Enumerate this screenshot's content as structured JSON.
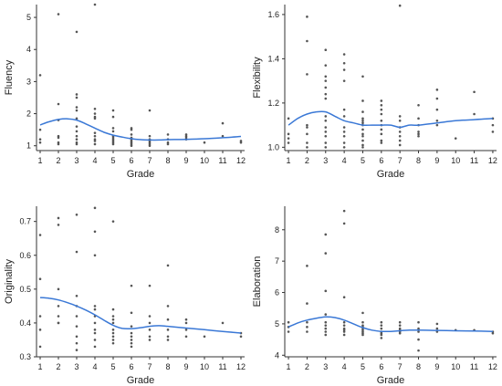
{
  "colors": {
    "trend": "#3a78d6",
    "points": "#555555",
    "axis": "#333333"
  },
  "chart_data": [
    {
      "type": "scatter",
      "title": "",
      "xlabel": "Grade",
      "ylabel": "Fluency",
      "xlim": [
        0.8,
        12.2
      ],
      "ylim": [
        0.85,
        5.4
      ],
      "xticks": [
        1,
        2,
        3,
        4,
        5,
        6,
        7,
        8,
        9,
        10,
        11,
        12
      ],
      "yticks": [
        1,
        2,
        3,
        4,
        5
      ],
      "grid": false,
      "points": [
        [
          1,
          3.2
        ],
        [
          1,
          1.5
        ],
        [
          1,
          1.2
        ],
        [
          1,
          1.1
        ],
        [
          2,
          5.1
        ],
        [
          2,
          2.3
        ],
        [
          2,
          1.8
        ],
        [
          2,
          1.3
        ],
        [
          2,
          1.25
        ],
        [
          2,
          1.1
        ],
        [
          2,
          1.05
        ],
        [
          3,
          4.55
        ],
        [
          3,
          2.6
        ],
        [
          3,
          2.5
        ],
        [
          3,
          2.2
        ],
        [
          3,
          2.1
        ],
        [
          3,
          1.85
        ],
        [
          3,
          1.6
        ],
        [
          3,
          1.45
        ],
        [
          3,
          1.3
        ],
        [
          3,
          1.2
        ],
        [
          3,
          1.1
        ],
        [
          3,
          1.05
        ],
        [
          4,
          5.4
        ],
        [
          4,
          2.15
        ],
        [
          4,
          2.0
        ],
        [
          4,
          1.9
        ],
        [
          4,
          1.85
        ],
        [
          4,
          1.4
        ],
        [
          4,
          1.3
        ],
        [
          4,
          1.2
        ],
        [
          4,
          1.15
        ],
        [
          4,
          1.05
        ],
        [
          5,
          2.1
        ],
        [
          5,
          1.9
        ],
        [
          5,
          1.55
        ],
        [
          5,
          1.45
        ],
        [
          5,
          1.3
        ],
        [
          5,
          1.25
        ],
        [
          5,
          1.2
        ],
        [
          5,
          1.15
        ],
        [
          5,
          1.1
        ],
        [
          5,
          1.05
        ],
        [
          6,
          1.55
        ],
        [
          6,
          1.5
        ],
        [
          6,
          1.35
        ],
        [
          6,
          1.25
        ],
        [
          6,
          1.2
        ],
        [
          6,
          1.15
        ],
        [
          6,
          1.1
        ],
        [
          6,
          1.05
        ],
        [
          6,
          1.0
        ],
        [
          7,
          2.1
        ],
        [
          7,
          1.3
        ],
        [
          7,
          1.2
        ],
        [
          7,
          1.15
        ],
        [
          7,
          1.1
        ],
        [
          7,
          1.05
        ],
        [
          7,
          1.0
        ],
        [
          8,
          1.35
        ],
        [
          8,
          1.2
        ],
        [
          8,
          1.1
        ],
        [
          8,
          1.05
        ],
        [
          9,
          1.35
        ],
        [
          9,
          1.3
        ],
        [
          9,
          1.25
        ],
        [
          9,
          1.2
        ],
        [
          10,
          1.1
        ],
        [
          11,
          1.7
        ],
        [
          11,
          1.3
        ],
        [
          12,
          1.15
        ],
        [
          12,
          1.1
        ]
      ],
      "trend": {
        "x": [
          1,
          1.5,
          2,
          2.5,
          3,
          3.5,
          4,
          4.5,
          5,
          5.5,
          6,
          6.5,
          7,
          7.5,
          8,
          9,
          10,
          11,
          12
        ],
        "y": [
          1.65,
          1.75,
          1.82,
          1.84,
          1.8,
          1.68,
          1.55,
          1.42,
          1.33,
          1.27,
          1.22,
          1.19,
          1.18,
          1.18,
          1.19,
          1.2,
          1.22,
          1.25,
          1.29
        ]
      }
    },
    {
      "type": "scatter",
      "title": "",
      "xlabel": "Grade",
      "ylabel": "Flexibility",
      "xlim": [
        0.8,
        12.2
      ],
      "ylim": [
        0.985,
        1.645
      ],
      "xticks": [
        1,
        2,
        3,
        4,
        5,
        6,
        7,
        8,
        9,
        10,
        11,
        12
      ],
      "yticks": [
        1.0,
        1.2,
        1.4,
        1.6
      ],
      "ytick_labels": [
        "1.0",
        "1.2",
        "1.4",
        "1.6"
      ],
      "grid": false,
      "points": [
        [
          1,
          1.13
        ],
        [
          1,
          1.06
        ],
        [
          1,
          1.04
        ],
        [
          1,
          1.02
        ],
        [
          2,
          1.59
        ],
        [
          2,
          1.48
        ],
        [
          2,
          1.33
        ],
        [
          2,
          1.1
        ],
        [
          2,
          1.09
        ],
        [
          2,
          1.06
        ],
        [
          2,
          1.02
        ],
        [
          2,
          1.0
        ],
        [
          3,
          1.44
        ],
        [
          3,
          1.37
        ],
        [
          3,
          1.32
        ],
        [
          3,
          1.3
        ],
        [
          3,
          1.27
        ],
        [
          3,
          1.24
        ],
        [
          3,
          1.22
        ],
        [
          3,
          1.14
        ],
        [
          3,
          1.12
        ],
        [
          3,
          1.09
        ],
        [
          3,
          1.07
        ],
        [
          3,
          1.05
        ],
        [
          3,
          1.02
        ],
        [
          3,
          1.0
        ],
        [
          4,
          1.42
        ],
        [
          4,
          1.38
        ],
        [
          4,
          1.35
        ],
        [
          4,
          1.3
        ],
        [
          4,
          1.17
        ],
        [
          4,
          1.14
        ],
        [
          4,
          1.09
        ],
        [
          4,
          1.07
        ],
        [
          4,
          1.05
        ],
        [
          4,
          1.02
        ],
        [
          4,
          1.0
        ],
        [
          5,
          1.32
        ],
        [
          5,
          1.21
        ],
        [
          5,
          1.16
        ],
        [
          5,
          1.13
        ],
        [
          5,
          1.12
        ],
        [
          5,
          1.11
        ],
        [
          5,
          1.1
        ],
        [
          5,
          1.08
        ],
        [
          5,
          1.06
        ],
        [
          5,
          1.05
        ],
        [
          5,
          1.03
        ],
        [
          5,
          1.01
        ],
        [
          5,
          1.0
        ],
        [
          6,
          1.21
        ],
        [
          6,
          1.19
        ],
        [
          6,
          1.17
        ],
        [
          6,
          1.15
        ],
        [
          6,
          1.12
        ],
        [
          6,
          1.1
        ],
        [
          6,
          1.08
        ],
        [
          6,
          1.06
        ],
        [
          6,
          1.03
        ],
        [
          6,
          1.02
        ],
        [
          7,
          1.64
        ],
        [
          7,
          1.14
        ],
        [
          7,
          1.12
        ],
        [
          7,
          1.09
        ],
        [
          7,
          1.07
        ],
        [
          7,
          1.05
        ],
        [
          7,
          1.03
        ],
        [
          7,
          1.01
        ],
        [
          8,
          1.19
        ],
        [
          8,
          1.13
        ],
        [
          8,
          1.1
        ],
        [
          8,
          1.07
        ],
        [
          8,
          1.06
        ],
        [
          8,
          1.05
        ],
        [
          9,
          1.26
        ],
        [
          9,
          1.22
        ],
        [
          9,
          1.17
        ],
        [
          9,
          1.12
        ],
        [
          9,
          1.1
        ],
        [
          10,
          1.04
        ],
        [
          11,
          1.25
        ],
        [
          11,
          1.15
        ],
        [
          12,
          1.13
        ],
        [
          12,
          1.1
        ],
        [
          12,
          1.07
        ]
      ],
      "trend": {
        "x": [
          1,
          1.5,
          2,
          2.5,
          3,
          3.5,
          4,
          4.5,
          5,
          5.5,
          6,
          6.5,
          7,
          7.5,
          8,
          9,
          10,
          11,
          12
        ],
        "y": [
          1.1,
          1.13,
          1.15,
          1.16,
          1.16,
          1.14,
          1.12,
          1.11,
          1.1,
          1.1,
          1.1,
          1.1,
          1.09,
          1.1,
          1.1,
          1.11,
          1.12,
          1.125,
          1.13
        ]
      }
    },
    {
      "type": "scatter",
      "title": "",
      "xlabel": "Grade",
      "ylabel": "Originality",
      "xlim": [
        0.8,
        12.2
      ],
      "ylim": [
        0.3,
        0.745
      ],
      "xticks": [
        1,
        2,
        3,
        4,
        5,
        6,
        7,
        8,
        9,
        10,
        11,
        12
      ],
      "yticks": [
        0.3,
        0.4,
        0.5,
        0.6,
        0.7
      ],
      "ytick_labels": [
        "0.3",
        "0.4",
        "0.5",
        "0.6",
        "0.7"
      ],
      "grid": false,
      "points": [
        [
          1,
          0.66
        ],
        [
          1,
          0.53
        ],
        [
          1,
          0.42
        ],
        [
          1,
          0.38
        ],
        [
          1,
          0.33
        ],
        [
          2,
          0.71
        ],
        [
          2,
          0.69
        ],
        [
          2,
          0.5
        ],
        [
          2,
          0.45
        ],
        [
          2,
          0.42
        ],
        [
          2,
          0.4
        ],
        [
          2,
          0.4
        ],
        [
          3,
          0.72
        ],
        [
          3,
          0.61
        ],
        [
          3,
          0.48
        ],
        [
          3,
          0.45
        ],
        [
          3,
          0.42
        ],
        [
          3,
          0.39
        ],
        [
          3,
          0.36
        ],
        [
          3,
          0.34
        ],
        [
          3,
          0.32
        ],
        [
          4,
          0.74
        ],
        [
          4,
          0.67
        ],
        [
          4,
          0.6
        ],
        [
          4,
          0.45
        ],
        [
          4,
          0.44
        ],
        [
          4,
          0.42
        ],
        [
          4,
          0.4
        ],
        [
          4,
          0.38
        ],
        [
          4,
          0.37
        ],
        [
          4,
          0.35
        ],
        [
          4,
          0.33
        ],
        [
          5,
          0.7
        ],
        [
          5,
          0.44
        ],
        [
          5,
          0.42
        ],
        [
          5,
          0.41
        ],
        [
          5,
          0.4
        ],
        [
          5,
          0.38
        ],
        [
          5,
          0.37
        ],
        [
          5,
          0.36
        ],
        [
          5,
          0.35
        ],
        [
          5,
          0.34
        ],
        [
          6,
          0.51
        ],
        [
          6,
          0.43
        ],
        [
          6,
          0.39
        ],
        [
          6,
          0.37
        ],
        [
          6,
          0.36
        ],
        [
          6,
          0.35
        ],
        [
          6,
          0.34
        ],
        [
          6,
          0.33
        ],
        [
          7,
          0.51
        ],
        [
          7,
          0.42
        ],
        [
          7,
          0.4
        ],
        [
          7,
          0.38
        ],
        [
          7,
          0.36
        ],
        [
          7,
          0.35
        ],
        [
          8,
          0.57
        ],
        [
          8,
          0.45
        ],
        [
          8,
          0.41
        ],
        [
          8,
          0.38
        ],
        [
          8,
          0.36
        ],
        [
          8,
          0.35
        ],
        [
          9,
          0.41
        ],
        [
          9,
          0.4
        ],
        [
          9,
          0.38
        ],
        [
          9,
          0.36
        ],
        [
          10,
          0.36
        ],
        [
          11,
          0.4
        ],
        [
          12,
          0.37
        ],
        [
          12,
          0.36
        ]
      ],
      "trend": {
        "x": [
          1,
          1.5,
          2,
          2.5,
          3,
          3.5,
          4,
          4.5,
          5,
          5.5,
          6,
          6.5,
          7,
          7.5,
          8,
          9,
          10,
          11,
          12
        ],
        "y": [
          0.475,
          0.473,
          0.468,
          0.46,
          0.45,
          0.438,
          0.424,
          0.408,
          0.393,
          0.384,
          0.383,
          0.386,
          0.39,
          0.392,
          0.39,
          0.385,
          0.38,
          0.375,
          0.37
        ]
      }
    },
    {
      "type": "scatter",
      "title": "",
      "xlabel": "Grade",
      "ylabel": "Elaboration",
      "xlim": [
        0.8,
        12.2
      ],
      "ylim": [
        3.95,
        8.75
      ],
      "xticks": [
        1,
        2,
        3,
        4,
        5,
        6,
        7,
        8,
        9,
        10,
        11,
        12
      ],
      "yticks": [
        4,
        5,
        6,
        7,
        8
      ],
      "grid": false,
      "points": [
        [
          1,
          5.05
        ],
        [
          1,
          4.9
        ],
        [
          1,
          4.75
        ],
        [
          2,
          6.85
        ],
        [
          2,
          5.65
        ],
        [
          2,
          5.05
        ],
        [
          2,
          4.9
        ],
        [
          2,
          4.75
        ],
        [
          3,
          7.85
        ],
        [
          3,
          7.25
        ],
        [
          3,
          6.05
        ],
        [
          3,
          5.3
        ],
        [
          3,
          5.05
        ],
        [
          3,
          4.95
        ],
        [
          3,
          4.85
        ],
        [
          3,
          4.75
        ],
        [
          3,
          4.65
        ],
        [
          4,
          8.6
        ],
        [
          4,
          8.2
        ],
        [
          4,
          5.85
        ],
        [
          4,
          5.05
        ],
        [
          4,
          4.95
        ],
        [
          4,
          4.85
        ],
        [
          4,
          4.8
        ],
        [
          4,
          4.75
        ],
        [
          4,
          4.65
        ],
        [
          5,
          5.35
        ],
        [
          5,
          5.05
        ],
        [
          5,
          4.95
        ],
        [
          5,
          4.9
        ],
        [
          5,
          4.85
        ],
        [
          5,
          4.8
        ],
        [
          5,
          4.75
        ],
        [
          5,
          4.7
        ],
        [
          5,
          4.65
        ],
        [
          6,
          5.05
        ],
        [
          6,
          4.95
        ],
        [
          6,
          4.85
        ],
        [
          6,
          4.75
        ],
        [
          6,
          4.7
        ],
        [
          6,
          4.65
        ],
        [
          6,
          4.55
        ],
        [
          7,
          5.05
        ],
        [
          7,
          4.95
        ],
        [
          7,
          4.85
        ],
        [
          7,
          4.8
        ],
        [
          7,
          4.75
        ],
        [
          7,
          4.7
        ],
        [
          8,
          5.05
        ],
        [
          8,
          4.85
        ],
        [
          8,
          4.75
        ],
        [
          8,
          4.5
        ],
        [
          8,
          4.15
        ],
        [
          9,
          5.0
        ],
        [
          9,
          4.85
        ],
        [
          9,
          4.75
        ],
        [
          10,
          4.8
        ],
        [
          11,
          4.8
        ],
        [
          12,
          4.75
        ],
        [
          12,
          4.7
        ]
      ],
      "trend": {
        "x": [
          1,
          1.5,
          2,
          2.5,
          3,
          3.5,
          4,
          4.5,
          5,
          5.5,
          6,
          6.5,
          7,
          7.5,
          8,
          9,
          10,
          11,
          12
        ],
        "y": [
          4.9,
          5.03,
          5.12,
          5.18,
          5.22,
          5.2,
          5.12,
          5.0,
          4.88,
          4.8,
          4.76,
          4.76,
          4.78,
          4.8,
          4.8,
          4.79,
          4.78,
          4.77,
          4.76
        ]
      }
    }
  ]
}
